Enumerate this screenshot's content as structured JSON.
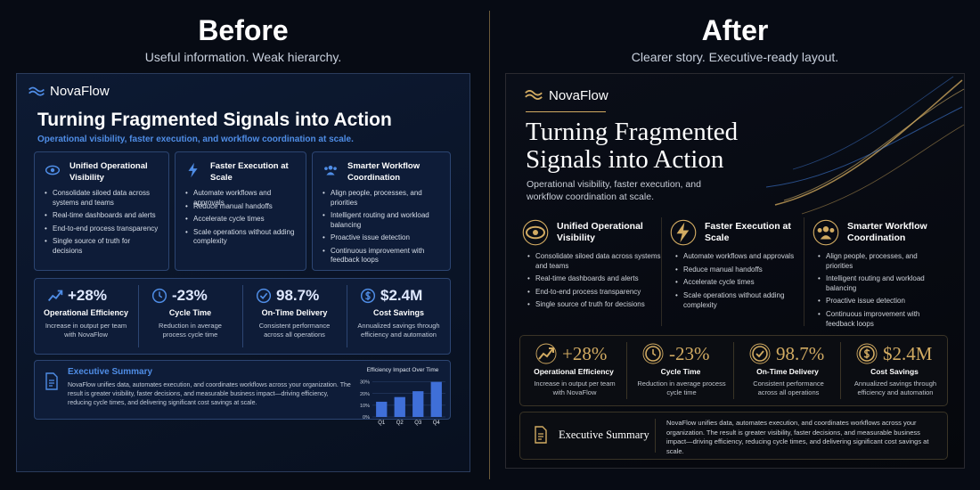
{
  "before": {
    "heading": "Before",
    "caption": "Useful information. Weak hierarchy.",
    "slide": {
      "brand": "NovaFlow",
      "title": "Turning Fragmented Signals into Action",
      "subtitle": "Operational visibility, faster execution, and workflow coordination at scale.",
      "pillars": [
        {
          "title": "Unified Operational Visibility",
          "bullets": [
            "Consolidate siloed data across systems and teams",
            "Real-time dashboards and alerts",
            "End-to-end process transparency",
            "Single source of truth for decisions"
          ]
        },
        {
          "title": "Faster Execution at Scale",
          "bullets": [
            "Automate workflows and approvals",
            "Reduce manual handoffs",
            "Accelerate cycle times",
            "Scale operations without adding complexity"
          ]
        },
        {
          "title": "Smarter Workflow Coordination",
          "bullets": [
            "Align people, processes, and priorities",
            "Intelligent routing and workload balancing",
            "Proactive issue detection",
            "Continuous improvement with feedback loops"
          ]
        }
      ],
      "kpis": [
        {
          "value": "+28%",
          "label": "Operational Efficiency",
          "note": "Increase in output per team with NovaFlow"
        },
        {
          "value": "-23%",
          "label": "Cycle Time",
          "note": "Reduction in average process cycle time"
        },
        {
          "value": "98.7%",
          "label": "On-Time Delivery",
          "note": "Consistent performance across all operations"
        },
        {
          "value": "$2.4M",
          "label": "Cost Savings",
          "note": "Annualized savings through efficiency and automation"
        }
      ],
      "summary": {
        "title": "Executive Summary",
        "text": "NovaFlow unifies data, automates execution, and coordinates workflows across your organization. The result is greater visibility, faster decisions, and measurable business impact—driving efficiency, reducing cycle times, and delivering significant cost savings at scale."
      },
      "chart": {
        "type": "bar",
        "title": "Efficiency Impact Over Time",
        "categories": [
          "Q1",
          "Q2",
          "Q3",
          "Q4"
        ],
        "values": [
          13,
          17,
          22,
          30
        ],
        "color": "#3f6fd8",
        "ylim": [
          0,
          32
        ],
        "yticks": [
          {
            "value": 0,
            "label": "0%"
          },
          {
            "value": 10,
            "label": "10%"
          },
          {
            "value": 20,
            "label": "20%"
          },
          {
            "value": 30,
            "label": "30%"
          }
        ]
      }
    }
  },
  "after": {
    "heading": "After",
    "caption": "Clearer story. Executive-ready layout.",
    "slide": {
      "brand": "NovaFlow",
      "title": "Turning Fragmented Signals into Action",
      "subtitle": "Operational visibility, faster execution, and workflow coordination at scale.",
      "pillars": [
        {
          "title": "Unified Operational Visibility",
          "bullets": [
            "Consolidate siloed data across systems and teams",
            "Real-time dashboards and alerts",
            "End-to-end process transparency",
            "Single source of truth for decisions"
          ]
        },
        {
          "title": "Faster Execution at Scale",
          "bullets": [
            "Automate workflows and approvals",
            "Reduce manual handoffs",
            "Accelerate cycle times",
            "Scale operations without adding complexity"
          ]
        },
        {
          "title": "Smarter Workflow Coordination",
          "bullets": [
            "Align people, processes, and priorities",
            "Intelligent routing and workload balancing",
            "Proactive issue detection",
            "Continuous improvement with feedback loops"
          ]
        }
      ],
      "kpis": [
        {
          "value": "+28%",
          "label": "Operational Efficiency",
          "note": "Increase in output per team with NovaFlow"
        },
        {
          "value": "-23%",
          "label": "Cycle Time",
          "note": "Reduction in average process cycle time"
        },
        {
          "value": "98.7%",
          "label": "On-Time Delivery",
          "note": "Consistent performance across all operations"
        },
        {
          "value": "$2.4M",
          "label": "Cost Savings",
          "note": "Annualized savings through efficiency and automation"
        }
      ],
      "summary": {
        "title": "Executive Summary",
        "text": "NovaFlow unifies data, automates execution, and coordinates workflows across your organization. The result is greater visibility, faster decisions, and measurable business impact—driving efficiency, reducing cycle times, and delivering significant cost savings at scale."
      }
    }
  }
}
